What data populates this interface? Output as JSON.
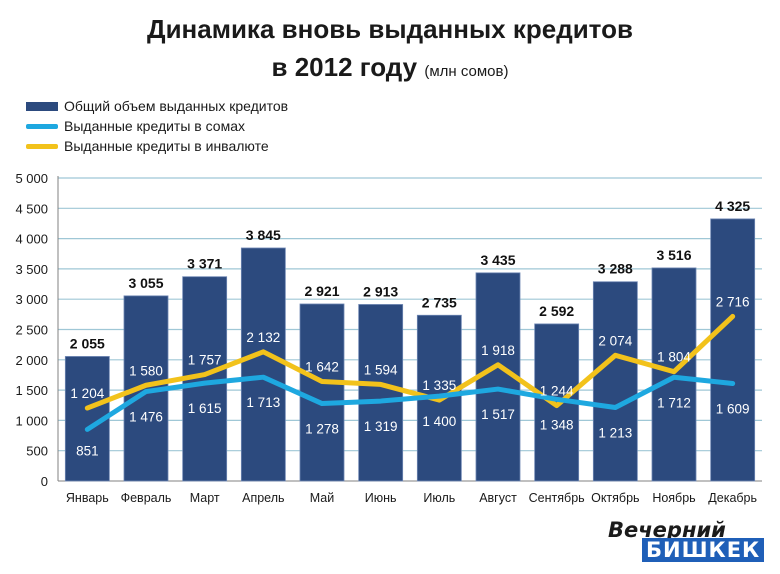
{
  "title_line1": "Динамика вновь выданных кредитов",
  "title_line2": "в 2012 году",
  "title_unit": "(млн сомов)",
  "logo_line1": "Вечерний",
  "logo_line2": "БИШКЕК",
  "colors": {
    "bar": "#2c4a7e",
    "som_line": "#1ea8e0",
    "fx_line": "#f2c21b",
    "grid": "#9fc7d6",
    "logo_blue": "#1f5fb8"
  },
  "chart_data": {
    "type": "bar",
    "categories": [
      "Январь",
      "Февраль",
      "Март",
      "Апрель",
      "Май",
      "Июнь",
      "Июль",
      "Август",
      "Сентябрь",
      "Октябрь",
      "Ноябрь",
      "Декабрь"
    ],
    "series": [
      {
        "name": "Общий объем выданных кредитов",
        "type": "bar",
        "values": [
          2055,
          3055,
          3371,
          3845,
          2921,
          2913,
          2735,
          3435,
          2592,
          3288,
          3516,
          4325
        ]
      },
      {
        "name": "Выданные кредиты в сомах",
        "type": "line",
        "values": [
          851,
          1476,
          1615,
          1713,
          1278,
          1319,
          1400,
          1517,
          1348,
          1213,
          1712,
          1609
        ]
      },
      {
        "name": "Выданные кредиты в инвалюте",
        "type": "line",
        "values": [
          1204,
          1580,
          1757,
          2132,
          1642,
          1594,
          1335,
          1918,
          1244,
          2074,
          1804,
          2716
        ]
      }
    ],
    "yticks": [
      "0",
      "500",
      "1 000",
      "1 500",
      "2 000",
      "2 500",
      "3 000",
      "3 500",
      "4 000",
      "4 500",
      "5 000"
    ],
    "ylim": [
      0,
      5000
    ],
    "grid": true,
    "legend": "top-left"
  }
}
